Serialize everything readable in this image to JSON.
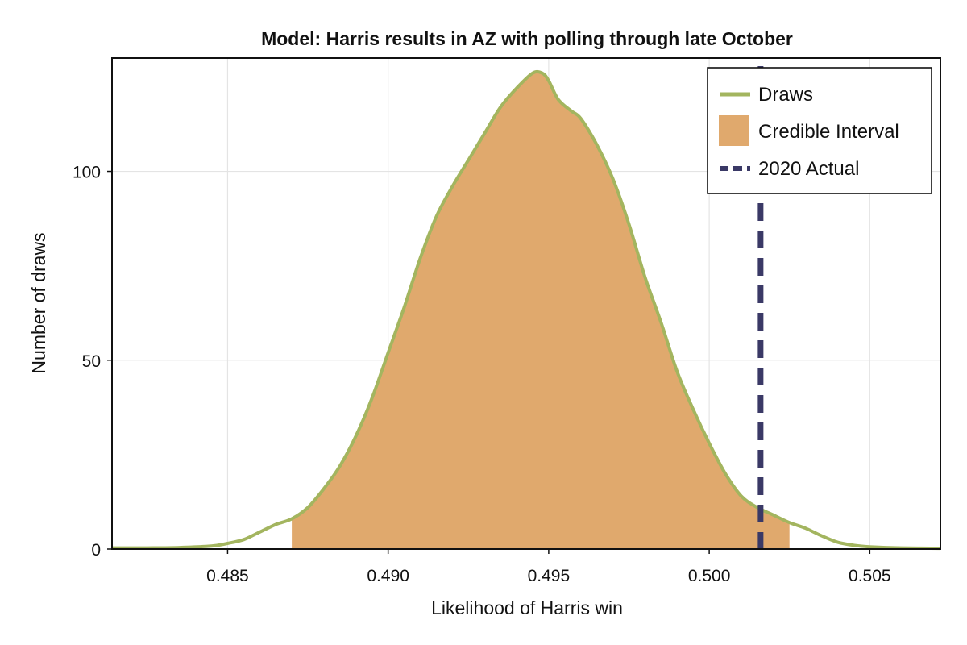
{
  "chart_data": {
    "type": "area",
    "title": "Model: Harris results in AZ with polling through late October",
    "xlabel": "Likelihood of Harris win",
    "ylabel": "Number of draws",
    "xlim": [
      0.4814,
      0.5072
    ],
    "ylim": [
      0,
      130
    ],
    "x_ticks": [
      0.485,
      0.49,
      0.495,
      0.5,
      0.505
    ],
    "x_tick_labels": [
      "0.485",
      "0.490",
      "0.495",
      "0.500",
      "0.505"
    ],
    "y_ticks": [
      0,
      50,
      100
    ],
    "y_tick_labels": [
      "0",
      "50",
      "100"
    ],
    "grid": true,
    "legend_position": "top-right",
    "series": [
      {
        "name": "Draws",
        "kind": "density-line",
        "color": "#a3b55f",
        "x": [
          0.4814,
          0.4825,
          0.4835,
          0.4845,
          0.485,
          0.4855,
          0.486,
          0.4865,
          0.487,
          0.4875,
          0.488,
          0.4885,
          0.489,
          0.4895,
          0.49,
          0.4905,
          0.491,
          0.4915,
          0.492,
          0.4925,
          0.493,
          0.4935,
          0.494,
          0.4945,
          0.4948,
          0.495,
          0.4953,
          0.4957,
          0.496,
          0.4965,
          0.497,
          0.4975,
          0.498,
          0.4985,
          0.499,
          0.4995,
          0.5,
          0.5005,
          0.501,
          0.5015,
          0.502,
          0.5025,
          0.503,
          0.5035,
          0.504,
          0.5045,
          0.505,
          0.506,
          0.5072
        ],
        "y": [
          0.3,
          0.3,
          0.4,
          0.8,
          1.5,
          2.5,
          4.5,
          6.5,
          8.0,
          11,
          16,
          22,
          30,
          40,
          52,
          64,
          77,
          88,
          96,
          103,
          110,
          117,
          122,
          126,
          126,
          124,
          119,
          116,
          114,
          107,
          98,
          86,
          72,
          60,
          47,
          37,
          28,
          20,
          14,
          11,
          9,
          7,
          5.5,
          3.5,
          1.8,
          1.0,
          0.6,
          0.3,
          0.2
        ]
      },
      {
        "name": "Credible Interval",
        "kind": "band",
        "color": "#e0a96d",
        "x_min": 0.487,
        "x_max": 0.5025
      },
      {
        "name": "2020 Actual",
        "kind": "vline",
        "color": "#3a3966",
        "x": 0.5016
      }
    ]
  }
}
